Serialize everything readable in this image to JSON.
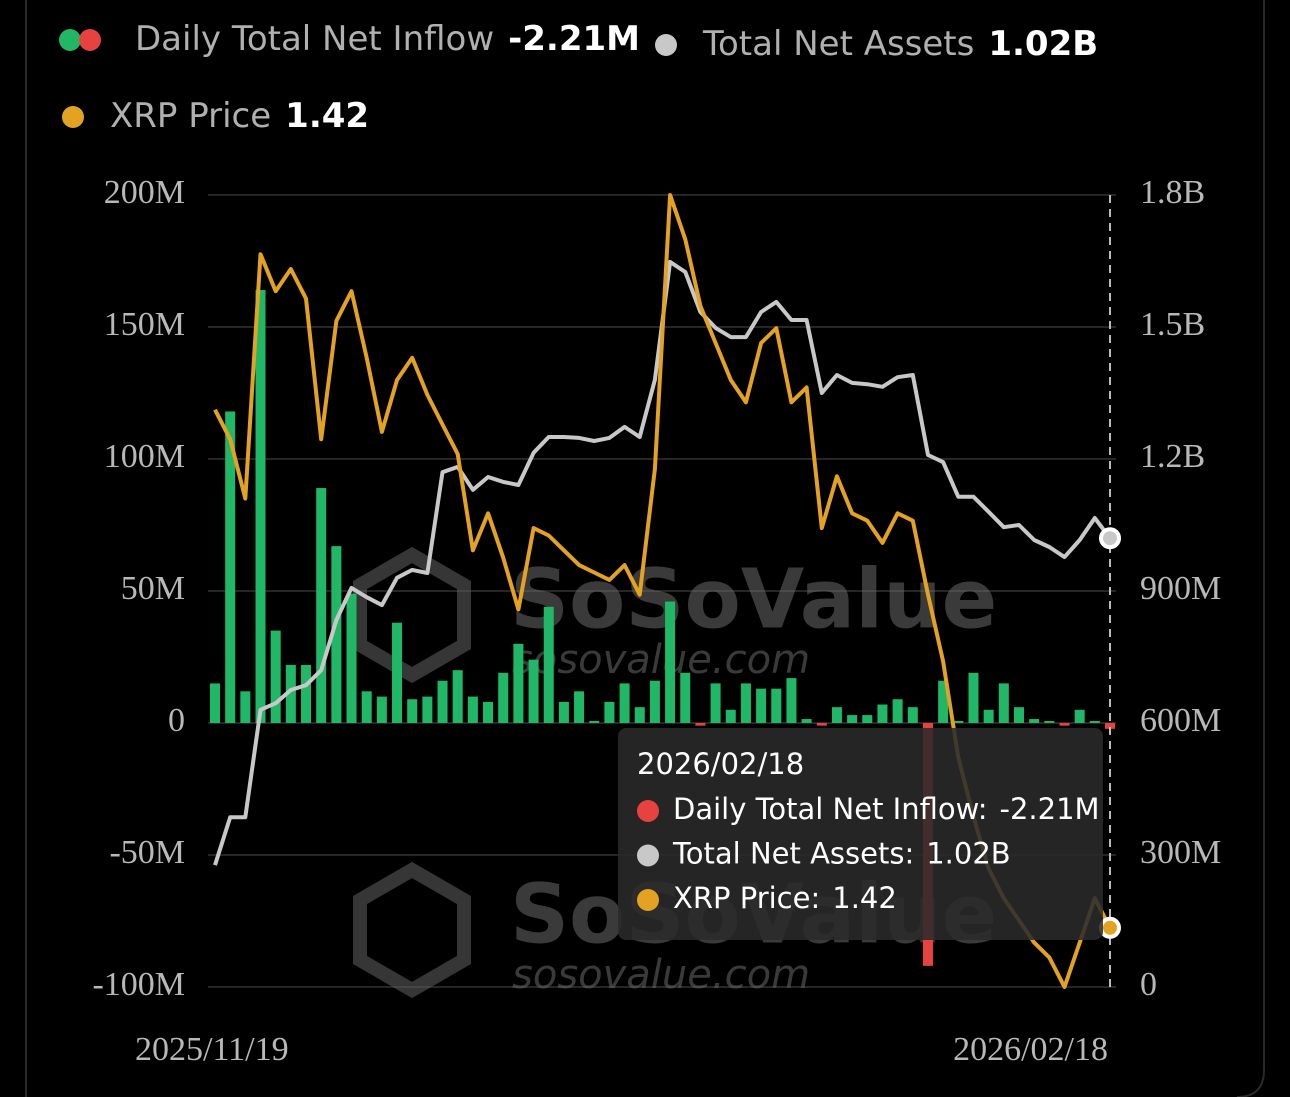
{
  "chart_data": {
    "type": "bar-line",
    "categories": [
      "2025/11/19",
      null,
      null,
      null,
      null,
      null,
      null,
      null,
      null,
      null,
      null,
      null,
      null,
      null,
      null,
      null,
      null,
      null,
      null,
      null,
      null,
      null,
      null,
      null,
      null,
      null,
      null,
      null,
      null,
      null,
      null,
      null,
      null,
      null,
      null,
      null,
      null,
      null,
      null,
      null,
      null,
      null,
      null,
      null,
      null,
      null,
      null,
      null,
      null,
      null,
      null,
      null,
      null,
      null,
      null,
      null,
      null,
      null,
      null,
      "2026/02/18"
    ],
    "series": [
      {
        "name": "Daily Total Net Inflow",
        "type": "bar",
        "axis": "y",
        "color": "#20b866",
        "negative_color": "#e8423f",
        "values": [
          15000000,
          118000000,
          12000000,
          164000000,
          35000000,
          22000000,
          22000000,
          89000000,
          67000000,
          49000000,
          12000000,
          10000000,
          38000000,
          9000000,
          10000000,
          16000000,
          20000000,
          10000000,
          8000000,
          19000000,
          30000000,
          24000000,
          44000000,
          8000000,
          12000000,
          0,
          8000000,
          15000000,
          6000000,
          16000000,
          46000000,
          19000000,
          -1000000,
          15000000,
          5000000,
          15000000,
          13000000,
          13000000,
          17000000,
          1500000,
          -1000000,
          6000000,
          3000000,
          3000000,
          7000000,
          9000000,
          6000000,
          -92000000,
          16000000,
          0,
          19000000,
          5000000,
          15000000,
          6000000,
          1500000,
          0,
          -1000000,
          5000000,
          0,
          -2210000
        ],
        "value_labels": [
          null,
          null,
          null,
          null,
          null,
          null,
          null,
          null,
          null,
          null,
          null,
          null,
          null,
          null,
          null,
          null,
          null,
          null,
          null,
          null,
          null,
          null,
          null,
          null,
          null,
          null,
          null,
          null,
          null,
          null,
          null,
          null,
          null,
          null,
          null,
          null,
          null,
          null,
          null,
          null,
          null,
          null,
          null,
          null,
          null,
          null,
          null,
          null,
          null,
          null,
          null,
          null,
          null,
          null,
          null,
          null,
          null,
          null,
          null,
          "-2.21M"
        ]
      },
      {
        "name": "Total Net Assets",
        "type": "line",
        "axis": "y2",
        "color": "#c8c8c8",
        "values": [
          277000000,
          386000000,
          386000000,
          630000000,
          645000000,
          675000000,
          686000000,
          720000000,
          834000000,
          907000000,
          886000000,
          868000000,
          930000000,
          948000000,
          941000000,
          1170000000,
          1182000000,
          1130000000,
          1159000000,
          1148000000,
          1141000000,
          1214000000,
          1250000000,
          1250000000,
          1248000000,
          1241000000,
          1248000000,
          1273000000,
          1250000000,
          1380000000,
          1648000000,
          1625000000,
          1534000000,
          1498000000,
          1477000000,
          1477000000,
          1534000000,
          1557000000,
          1516000000,
          1516000000,
          1350000000,
          1391000000,
          1373000000,
          1370000000,
          1364000000,
          1386000000,
          1391000000,
          1209000000,
          1193000000,
          1114000000,
          1114000000,
          1080000000,
          1045000000,
          1050000000,
          1016000000,
          1000000000,
          977000000,
          1016000000,
          1066000000,
          1020000000
        ],
        "value_labels": [
          null,
          null,
          null,
          null,
          null,
          null,
          null,
          null,
          null,
          null,
          null,
          null,
          null,
          null,
          null,
          null,
          null,
          null,
          null,
          null,
          null,
          null,
          null,
          null,
          null,
          null,
          null,
          null,
          null,
          null,
          null,
          null,
          null,
          null,
          null,
          null,
          null,
          null,
          null,
          null,
          null,
          null,
          null,
          null,
          null,
          null,
          null,
          null,
          null,
          null,
          null,
          null,
          null,
          null,
          null,
          null,
          null,
          null,
          null,
          "1.02B"
        ]
      },
      {
        "name": "XRP Price",
        "type": "line",
        "axis": "y3",
        "color": "#e3a221",
        "values": [
          2.12,
          2.08,
          2.0,
          2.33,
          2.28,
          2.31,
          2.27,
          2.08,
          2.24,
          2.28,
          2.19,
          2.09,
          2.16,
          2.19,
          2.14,
          2.1,
          2.06,
          1.93,
          1.98,
          1.92,
          1.85,
          1.96,
          1.95,
          1.93,
          1.91,
          1.9,
          1.89,
          1.91,
          1.87,
          2.04,
          2.41,
          2.35,
          2.26,
          2.21,
          2.16,
          2.13,
          2.21,
          2.23,
          2.13,
          2.15,
          1.96,
          2.03,
          1.98,
          1.97,
          1.94,
          1.98,
          1.97,
          1.87,
          1.78,
          1.65,
          1.57,
          1.5,
          1.46,
          1.43,
          1.4,
          1.38,
          1.34,
          1.4,
          1.46,
          1.42
        ]
      }
    ],
    "ylim": [
      -100000000,
      200000000
    ],
    "yticks": [
      {
        "value": -100000000,
        "label": "-100M"
      },
      {
        "value": -50000000,
        "label": "-50M"
      },
      0,
      {
        "value": 50000000,
        "label": "50M"
      },
      {
        "value": 100000000,
        "label": "100M"
      },
      {
        "value": 150000000,
        "label": "150M"
      },
      {
        "value": 200000000,
        "label": "200M"
      }
    ],
    "y2lim": [
      0,
      1800000000
    ],
    "y2ticks": [
      0,
      {
        "value": 300000000,
        "label": "300M"
      },
      {
        "value": 600000000,
        "label": "600M"
      },
      {
        "value": 900000000,
        "label": "900M"
      },
      {
        "value": 1200000000,
        "label": "1.2B"
      },
      {
        "value": 1500000000,
        "label": "1.5B"
      },
      {
        "value": 1800000000,
        "label": "1.8B"
      }
    ],
    "y3lim": [
      1.34,
      2.41
    ],
    "grid": true,
    "tooltip": {
      "labels": [
        "Daily Total Net Inflow:",
        "Total Net Assets:",
        "XRP Price:"
      ]
    },
    "watermark": {
      "brand": "SoSoValue",
      "url": "sosovalue.com"
    }
  }
}
